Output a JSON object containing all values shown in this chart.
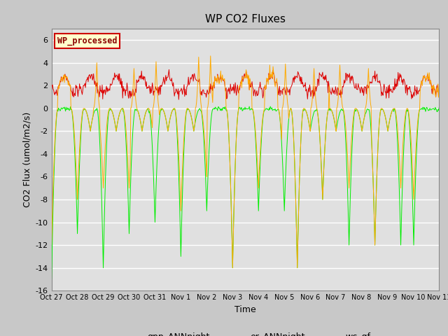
{
  "title": "WP CO2 Fluxes",
  "xlabel": "Time",
  "ylabel": "CO2 Flux (umol/m2/s)",
  "ylim": [
    -16,
    7
  ],
  "yticks": [
    -16,
    -14,
    -12,
    -10,
    -8,
    -6,
    -4,
    -2,
    0,
    2,
    4,
    6
  ],
  "fig_bg_color": "#c8c8c8",
  "plot_bg_color": "#e0e0e0",
  "grid_color": "white",
  "line_colors": {
    "gpp": "#00ee00",
    "er": "#dd0000",
    "wc": "#ffaa00"
  },
  "legend_label": "WP_processed",
  "legend_fg": "#8b0000",
  "legend_bg": "#ffffcc",
  "legend_edge": "#cc0000",
  "tick_labels": [
    "Oct 27",
    "Oct 28",
    "Oct 29",
    "Oct 30",
    "Oct 31",
    "Nov 1",
    "Nov 2",
    "Nov 3",
    "Nov 4",
    "Nov 5",
    "Nov 6",
    "Nov 7",
    "Nov 8",
    "Nov 9",
    "Nov 10",
    "Nov 11"
  ],
  "seed": 42
}
